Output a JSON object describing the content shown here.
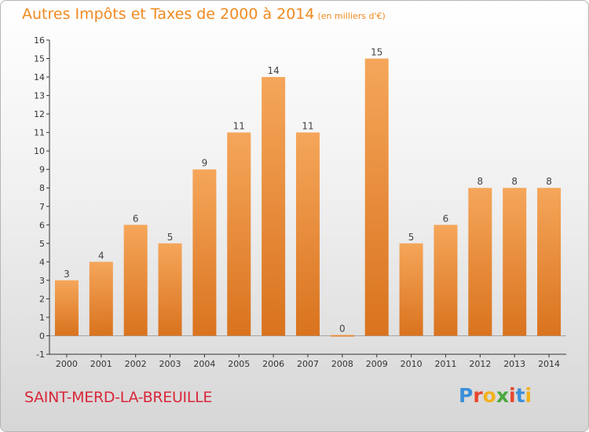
{
  "header": {
    "title": "Autres Impôts et Taxes de 2000 à 2014",
    "unit": "(en milliers d'€)"
  },
  "footer": {
    "place": "SAINT-MERD-LA-BREUILLE",
    "brand": "Proxiti"
  },
  "colors": {
    "bar_top": "#f5a65a",
    "bar_bottom": "#d9731e",
    "title": "#f08a20",
    "place": "#d9273a"
  },
  "chart_data": {
    "type": "bar",
    "title": "Autres Impôts et Taxes de 2000 à 2014",
    "subtitle": "(en milliers d'€)",
    "categories": [
      "2000",
      "2001",
      "2002",
      "2003",
      "2004",
      "2005",
      "2006",
      "2007",
      "2008",
      "2009",
      "2010",
      "2011",
      "2012",
      "2013",
      "2014"
    ],
    "values": [
      3,
      4,
      6,
      5,
      9,
      11,
      14,
      11,
      0,
      15,
      5,
      6,
      8,
      8,
      8
    ],
    "ylim": [
      -1,
      16
    ],
    "yticks": [
      -1,
      0,
      1,
      2,
      3,
      4,
      5,
      6,
      7,
      8,
      9,
      10,
      11,
      12,
      13,
      14,
      15,
      16
    ],
    "grid": false,
    "xlabel": "",
    "ylabel": ""
  }
}
